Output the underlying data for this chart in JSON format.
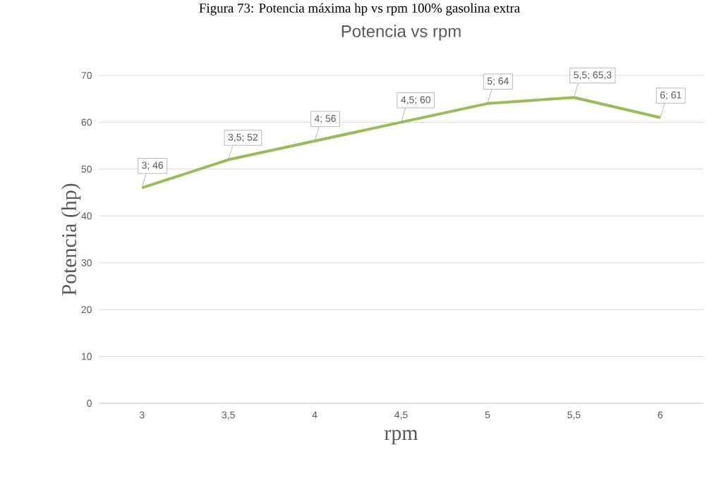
{
  "chart_data": {
    "type": "line",
    "title": "Potencia vs rpm",
    "xlabel": "rpm",
    "ylabel": "Potencia (hp)",
    "annotations": [
      "Figura 73: Potencia máxima hp vs rpm 100% gasolina extra"
    ],
    "categories": [
      "3",
      "3,5",
      "4",
      "4,5",
      "5",
      "5,5",
      "6"
    ],
    "series": [
      {
        "color": "#9bbb59",
        "values": [
          46,
          52,
          56,
          60,
          64,
          65.3,
          61
        ],
        "value_labels": [
          "3; 46",
          "3,5; 52",
          "4; 56",
          "4,5; 60",
          "5; 64",
          "5,5; 65,3",
          "6; 61"
        ]
      }
    ],
    "ylim": [
      0,
      70
    ],
    "yticks": [
      0,
      10,
      20,
      30,
      40,
      50,
      60,
      70
    ],
    "grid": "y",
    "marker": "none",
    "line_style": "solid"
  }
}
